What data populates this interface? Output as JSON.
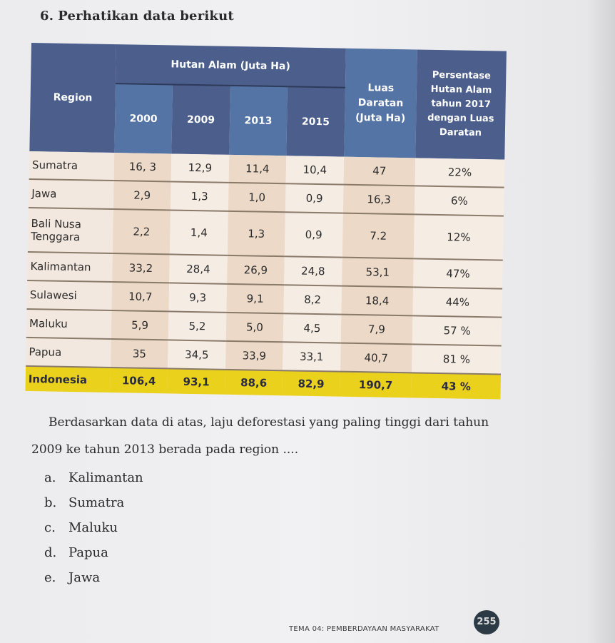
{
  "question": {
    "number": "6.",
    "title": "Perhatikan data berikut",
    "prompt_line1": "Berdasarkan data di atas, laju deforestasi yang paling tinggi dari tahun",
    "prompt_line2": "2009 ke tahun 2013 berada pada region ...."
  },
  "table": {
    "header": {
      "region": "Region",
      "hutan_alam": "Hutan Alam (Juta Ha)",
      "years": [
        "2000",
        "2009",
        "2013",
        "2015"
      ],
      "luas": [
        "Luas",
        "Daratan",
        "(Juta Ha)"
      ],
      "persentase": [
        "Persentase",
        "Hutan Alam",
        "tahun 2017",
        "dengan Luas",
        "Daratan"
      ]
    },
    "rows": [
      {
        "region": [
          "Sumatra"
        ],
        "y2000": "16, 3",
        "y2009": "12,9",
        "y2013": "11,4",
        "y2015": "10,4",
        "luas": "47",
        "pct": "22%"
      },
      {
        "region": [
          "Jawa"
        ],
        "y2000": "2,9",
        "y2009": "1,3",
        "y2013": "1,0",
        "y2015": "0,9",
        "luas": "16,3",
        "pct": "6%"
      },
      {
        "region": [
          "Bali Nusa",
          "Tenggara"
        ],
        "y2000": "2,2",
        "y2009": "1,4",
        "y2013": "1,3",
        "y2015": "0,9",
        "luas": "7.2",
        "pct": "12%"
      },
      {
        "region": [
          "Kalimantan"
        ],
        "y2000": "33,2",
        "y2009": "28,4",
        "y2013": "26,9",
        "y2015": "24,8",
        "luas": "53,1",
        "pct": "47%"
      },
      {
        "region": [
          "Sulawesi"
        ],
        "y2000": "10,7",
        "y2009": "9,3",
        "y2013": "9,1",
        "y2015": "8,2",
        "luas": "18,4",
        "pct": "44%"
      },
      {
        "region": [
          "Maluku"
        ],
        "y2000": "5,9",
        "y2009": "5,2",
        "y2013": "5,0",
        "y2015": "4,5",
        "luas": "7,9",
        "pct": "57 %"
      },
      {
        "region": [
          "Papua"
        ],
        "y2000": "35",
        "y2009": "34,5",
        "y2013": "33,9",
        "y2015": "33,1",
        "luas": "40,7",
        "pct": "81 %"
      }
    ],
    "total": {
      "region": "Indonesia",
      "y2000": "106,4",
      "y2009": "93,1",
      "y2013": "88,6",
      "y2015": "82,9",
      "luas": "190,7",
      "pct": "43 %"
    }
  },
  "options": [
    {
      "letter": "a.",
      "text": "Kalimantan"
    },
    {
      "letter": "b.",
      "text": "Sumatra"
    },
    {
      "letter": "c.",
      "text": "Maluku"
    },
    {
      "letter": "d.",
      "text": "Papua"
    },
    {
      "letter": "e.",
      "text": "Jawa"
    }
  ],
  "footer": {
    "label": "TEMA 04: PEMBERDAYAAN MASYARAKAT",
    "page": "255"
  },
  "colors": {
    "header_dark": "#4b5e8c",
    "header_light": "#5574a6",
    "total_row": "#ead11b"
  }
}
